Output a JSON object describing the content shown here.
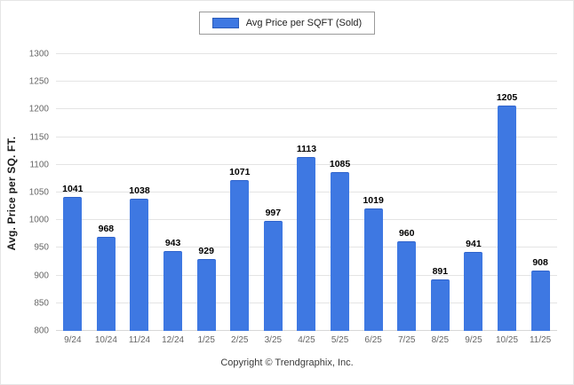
{
  "chart_data": {
    "type": "bar",
    "title": "",
    "legend": [
      {
        "label": "Avg Price per SQFT (Sold)",
        "color": "#3e78e2"
      }
    ],
    "categories": [
      "9/24",
      "10/24",
      "11/24",
      "12/24",
      "1/25",
      "2/25",
      "3/25",
      "4/25",
      "5/25",
      "6/25",
      "7/25",
      "8/25",
      "9/25",
      "10/25",
      "11/25"
    ],
    "values": [
      1041,
      968,
      1038,
      943,
      929,
      1071,
      997,
      1113,
      1085,
      1019,
      960,
      891,
      941,
      1205,
      908
    ],
    "xlabel": "",
    "ylabel": "Avg. Price per SQ. FT.",
    "ylim": [
      800,
      1300
    ],
    "ytick_step": 50,
    "grid": "horizontal",
    "legend_position": "top-center",
    "bar_color": "#3e78e2",
    "bar_border_color": "#2f63cc"
  },
  "footer": {
    "copyright": "Copyright © Trendgraphix, Inc."
  }
}
